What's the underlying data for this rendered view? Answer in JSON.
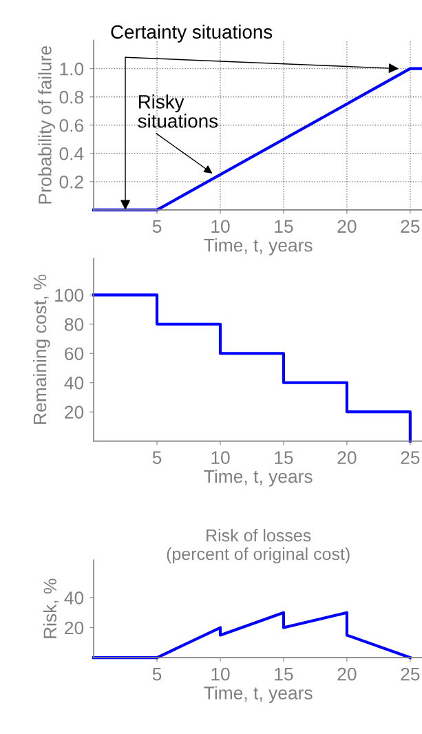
{
  "chart_data": [
    {
      "type": "line",
      "ylabel": "Probability of failure",
      "xlabel": "Time, t, years",
      "x": [
        0,
        5,
        25,
        26
      ],
      "series": [
        {
          "color": "#0000ff",
          "values": [
            0,
            0,
            1.0,
            1.0
          ]
        }
      ],
      "xlim": [
        0,
        26
      ],
      "ylim": [
        0,
        1.2
      ],
      "xticks": [
        5,
        10,
        15,
        20,
        25
      ],
      "yticks": [
        {
          "value": 0.2,
          "label": "0.2"
        },
        {
          "value": 0.4,
          "label": "0.4"
        },
        {
          "value": 0.6,
          "label": "0.6"
        },
        {
          "value": 0.8,
          "label": "0.8"
        },
        {
          "value": 1.0,
          "label": "1.0"
        }
      ],
      "grid": true,
      "annotations": [
        {
          "text": "Certainty situations",
          "x": 2.5,
          "y": 0
        },
        {
          "text": "Risky\nsituations",
          "x": 9.5,
          "y": 0.25
        }
      ]
    },
    {
      "type": "step",
      "ylabel": "Remaining cost, %",
      "xlabel": "Time, t, years",
      "x": [
        0,
        5,
        10,
        15,
        20,
        25
      ],
      "series": [
        {
          "color": "#0000ff",
          "values": [
            100,
            80,
            60,
            40,
            20,
            0
          ]
        }
      ],
      "xlim": [
        0,
        26
      ],
      "ylim": [
        0,
        125
      ],
      "xticks": [
        5,
        10,
        15,
        20,
        25
      ],
      "yticks": [
        20,
        40,
        60,
        80,
        100
      ]
    },
    {
      "type": "line",
      "title": "Risk of losses\n(percent of original cost)",
      "ylabel": "Risk, %",
      "xlabel": "Time, t, years",
      "x": [
        0,
        5,
        10,
        10,
        15,
        15,
        20,
        20,
        25
      ],
      "series": [
        {
          "color": "#0000ff",
          "values": [
            0,
            0,
            20,
            15,
            30,
            20,
            30,
            15,
            0
          ]
        }
      ],
      "xlim": [
        0,
        26
      ],
      "ylim": [
        0,
        65
      ],
      "xticks": [
        5,
        10,
        15,
        20,
        25
      ],
      "yticks": [
        20,
        40
      ]
    }
  ]
}
